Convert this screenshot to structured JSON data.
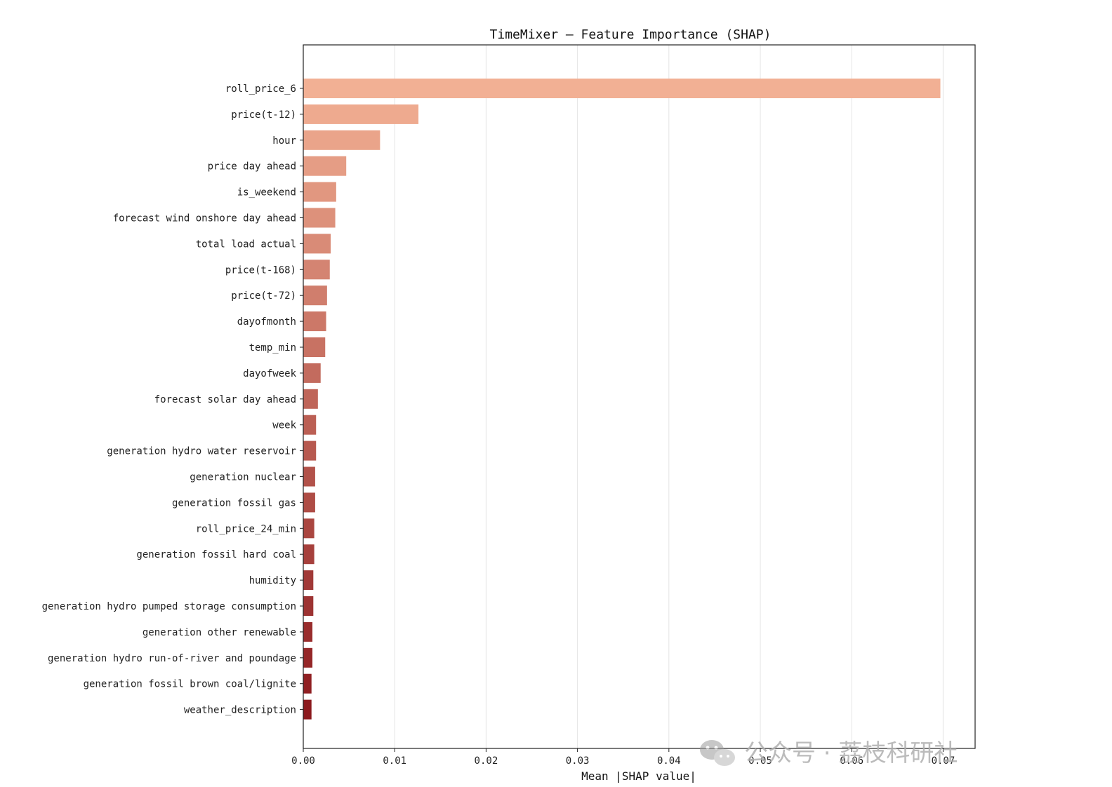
{
  "chart_data": {
    "type": "bar",
    "orientation": "horizontal",
    "title": "TimeMixer — Feature Importance (SHAP)",
    "xlabel": "Mean |SHAP value|",
    "ylabel": "",
    "xlim": [
      0,
      0.0735
    ],
    "x_ticks": [
      0.0,
      0.01,
      0.02,
      0.03,
      0.04,
      0.05,
      0.06,
      0.07
    ],
    "x_tick_labels": [
      "0.00",
      "0.01",
      "0.02",
      "0.03",
      "0.04",
      "0.05",
      "0.06",
      "0.07"
    ],
    "grid": "vertical",
    "legend": "none",
    "color_start": "#f2b094",
    "color_end": "#8c1a1e",
    "categories": [
      "roll_price_6",
      "price(t-12)",
      "hour",
      "price day ahead",
      "is_weekend",
      "forecast wind onshore day ahead",
      "total load actual",
      "price(t-168)",
      "price(t-72)",
      "dayofmonth",
      "temp_min",
      "dayofweek",
      "forecast solar day ahead",
      "week",
      "generation hydro water reservoir",
      "generation nuclear",
      "generation fossil gas",
      "roll_price_24_min",
      "generation fossil hard coal",
      "humidity",
      "generation hydro pumped storage consumption",
      "generation other renewable",
      "generation hydro run-of-river and poundage",
      "generation fossil brown coal/lignite",
      "weather_description"
    ],
    "values": [
      0.0697,
      0.0126,
      0.0084,
      0.0047,
      0.0036,
      0.0035,
      0.003,
      0.0029,
      0.0026,
      0.0025,
      0.0024,
      0.0019,
      0.0016,
      0.0014,
      0.0014,
      0.0013,
      0.0013,
      0.0012,
      0.0012,
      0.0011,
      0.0011,
      0.001,
      0.001,
      0.0009,
      0.0009
    ]
  },
  "watermark": {
    "icon": "wechat-icon",
    "text": "公众号 · 荔枝科研社"
  }
}
